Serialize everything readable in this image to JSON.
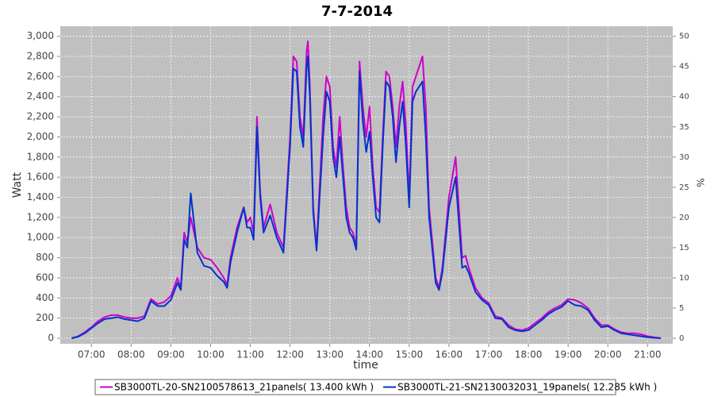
{
  "chart_data": {
    "type": "line",
    "title": "7-7-2014",
    "xlabel": "time",
    "ylabel": "Watt",
    "y2label": "%",
    "x": [
      "06:30",
      "06:40",
      "06:50",
      "07:00",
      "07:10",
      "07:20",
      "07:30",
      "07:40",
      "07:50",
      "08:00",
      "08:10",
      "08:20",
      "08:30",
      "08:40",
      "08:50",
      "09:00",
      "09:10",
      "09:15",
      "09:20",
      "09:25",
      "09:30",
      "09:40",
      "09:50",
      "10:00",
      "10:10",
      "10:20",
      "10:25",
      "10:30",
      "10:40",
      "10:50",
      "10:55",
      "11:00",
      "11:05",
      "11:10",
      "11:15",
      "11:20",
      "11:30",
      "11:40",
      "11:50",
      "12:00",
      "12:05",
      "12:10",
      "12:15",
      "12:20",
      "12:25",
      "12:27",
      "12:30",
      "12:35",
      "12:40",
      "12:50",
      "12:55",
      "13:00",
      "13:05",
      "13:10",
      "13:15",
      "13:20",
      "13:25",
      "13:30",
      "13:35",
      "13:40",
      "13:45",
      "13:50",
      "13:55",
      "14:00",
      "14:05",
      "14:10",
      "14:15",
      "14:20",
      "14:25",
      "14:30",
      "14:35",
      "14:40",
      "14:45",
      "14:50",
      "14:55",
      "15:00",
      "15:05",
      "15:10",
      "15:15",
      "15:20",
      "15:25",
      "15:30",
      "15:40",
      "15:45",
      "15:50",
      "16:00",
      "16:10",
      "16:15",
      "16:20",
      "16:25",
      "16:30",
      "16:40",
      "16:50",
      "17:00",
      "17:10",
      "17:20",
      "17:30",
      "17:40",
      "17:50",
      "18:00",
      "18:10",
      "18:20",
      "18:30",
      "18:40",
      "18:50",
      "19:00",
      "19:10",
      "19:20",
      "19:30",
      "19:40",
      "19:50",
      "20:00",
      "20:10",
      "20:20",
      "20:30",
      "20:40",
      "20:50",
      "21:00",
      "21:10",
      "21:20"
    ],
    "series": [
      {
        "name": "SB3000TL-20-SN2100578613_21panels( 13.400 kWh )",
        "color": "#cc00cc",
        "values": [
          0,
          20,
          60,
          110,
          170,
          210,
          230,
          230,
          210,
          200,
          200,
          220,
          390,
          340,
          360,
          420,
          600,
          500,
          1050,
          950,
          1200,
          900,
          800,
          780,
          700,
          600,
          530,
          800,
          1100,
          1300,
          1150,
          1200,
          1050,
          2200,
          1450,
          1100,
          1330,
          1050,
          900,
          2000,
          2800,
          2750,
          2200,
          2000,
          2850,
          2950,
          2500,
          1300,
          900,
          2200,
          2600,
          2500,
          1900,
          1700,
          2200,
          1700,
          1300,
          1100,
          1050,
          900,
          2750,
          2300,
          2000,
          2300,
          1700,
          1300,
          1250,
          2000,
          2650,
          2600,
          2300,
          1900,
          2300,
          2550,
          2100,
          1400,
          2500,
          2600,
          2700,
          2800,
          2300,
          1300,
          600,
          500,
          700,
          1400,
          1800,
          1300,
          800,
          820,
          700,
          500,
          400,
          350,
          220,
          200,
          130,
          90,
          80,
          100,
          150,
          200,
          260,
          300,
          330,
          390,
          380,
          350,
          300,
          200,
          130,
          130,
          90,
          60,
          50,
          50,
          40,
          20,
          10,
          0
        ]
      },
      {
        "name": "SB3000TL-21-SN2130032031_19panels( 12.285 kWh )",
        "color": "#0033cc",
        "values": [
          0,
          15,
          50,
          100,
          150,
          190,
          200,
          210,
          190,
          180,
          170,
          200,
          370,
          320,
          320,
          380,
          550,
          480,
          980,
          900,
          1440,
          850,
          720,
          700,
          620,
          560,
          500,
          750,
          1050,
          1300,
          1100,
          1100,
          980,
          2100,
          1400,
          1050,
          1220,
          1000,
          850,
          1900,
          2680,
          2650,
          2100,
          1900,
          2700,
          2800,
          2400,
          1250,
          870,
          2000,
          2450,
          2350,
          1800,
          1600,
          2000,
          1600,
          1200,
          1050,
          1000,
          880,
          2650,
          2150,
          1850,
          2050,
          1600,
          1200,
          1150,
          1900,
          2550,
          2500,
          2200,
          1750,
          2100,
          2350,
          1900,
          1300,
          2350,
          2450,
          2500,
          2550,
          2000,
          1200,
          550,
          480,
          650,
          1300,
          1600,
          1150,
          700,
          720,
          650,
          460,
          380,
          330,
          200,
          190,
          110,
          80,
          70,
          80,
          130,
          180,
          240,
          280,
          310,
          370,
          330,
          320,
          280,
          180,
          110,
          120,
          80,
          50,
          40,
          30,
          20,
          10,
          5,
          0
        ]
      }
    ],
    "xlim": [
      "06:13",
      "21:38"
    ],
    "xticks": [
      "07:00",
      "08:00",
      "09:00",
      "10:00",
      "11:00",
      "12:00",
      "13:00",
      "14:00",
      "15:00",
      "16:00",
      "17:00",
      "18:00",
      "19:00",
      "20:00",
      "21:00"
    ],
    "ylim": [
      -55,
      3100
    ],
    "yticks": [
      0,
      200,
      400,
      600,
      800,
      {
        "value": 1000,
        "label": "1,000"
      },
      {
        "value": 1200,
        "label": "1,200"
      },
      {
        "value": 1400,
        "label": "1,400"
      },
      {
        "value": 1600,
        "label": "1,600"
      },
      {
        "value": 1800,
        "label": "1,800"
      },
      {
        "value": 2000,
        "label": "2,000"
      },
      {
        "value": 2200,
        "label": "2,200"
      },
      {
        "value": 2400,
        "label": "2,400"
      },
      {
        "value": 2600,
        "label": "2,600"
      },
      {
        "value": 2800,
        "label": "2,800"
      },
      {
        "value": 3000,
        "label": "3,000"
      }
    ],
    "y2lim": [
      -0.917,
      51.667
    ],
    "y2ticks": [
      0,
      5,
      10,
      15,
      20,
      25,
      30,
      35,
      40,
      45,
      50
    ],
    "grid": true,
    "legend": "bottom"
  }
}
